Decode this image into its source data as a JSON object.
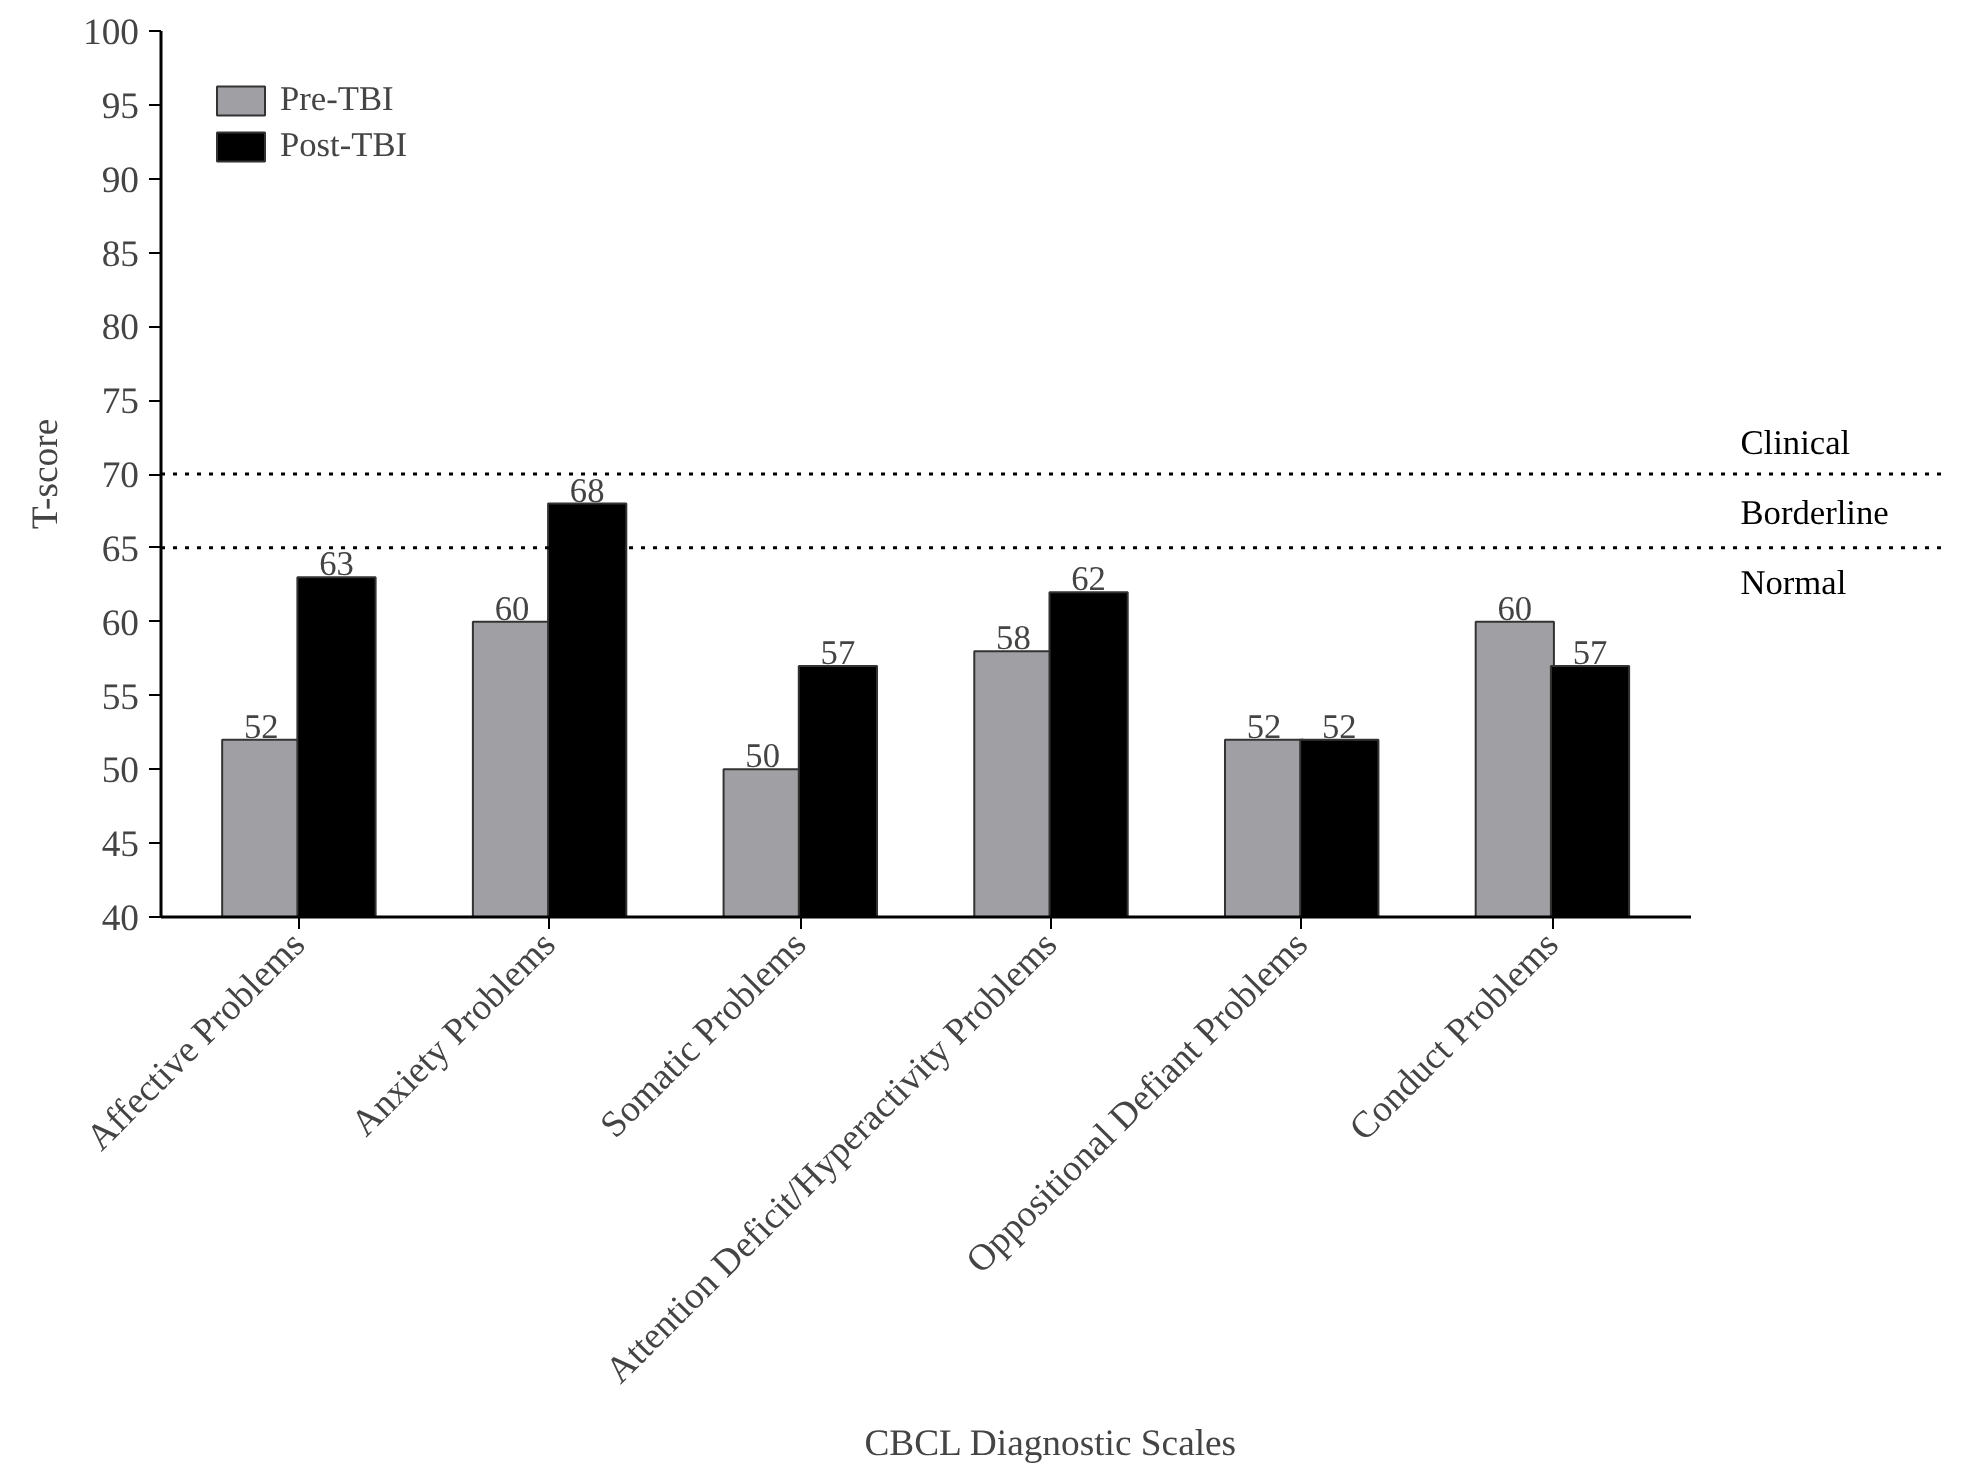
{
  "chart_data": {
    "type": "bar",
    "xlabel": "CBCL Diagnostic Scales",
    "ylabel": "T-score",
    "categories": [
      "Affective Problems",
      "Anxiety Problems",
      "Somatic Problems",
      "Attention Deficit/Hyperactivity Problems",
      "Oppositional Defiant Problems",
      "Conduct Problems"
    ],
    "series": [
      {
        "name": "Pre-TBI",
        "color": "#a0a0a4",
        "values": [
          52,
          60,
          50,
          58,
          52,
          60
        ]
      },
      {
        "name": "Post-TBI",
        "color": "#000000",
        "values": [
          63,
          68,
          57,
          62,
          52,
          57
        ]
      }
    ],
    "ylim": [
      40,
      100
    ],
    "yticks": [
      40,
      45,
      50,
      55,
      60,
      65,
      70,
      75,
      80,
      85,
      90,
      95,
      100
    ],
    "ref_lines": [
      {
        "axis": "y",
        "value": 70,
        "color": "#000000",
        "line_style": "dotted"
      },
      {
        "axis": "y",
        "value": 65,
        "color": "#000000",
        "line_style": "dotted"
      }
    ],
    "annotations": [
      "Clinical",
      "Borderline",
      "Normal"
    ],
    "data_labels": true,
    "grid": false,
    "legend": "top left"
  }
}
